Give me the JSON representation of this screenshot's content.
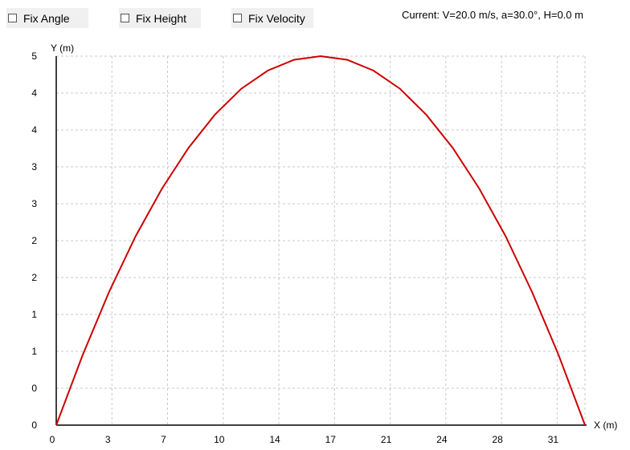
{
  "controls": {
    "fix_angle": {
      "label": "Fix Angle",
      "checked": false
    },
    "fix_height": {
      "label": "Fix Height",
      "checked": false
    },
    "fix_velocity": {
      "label": "Fix Velocity",
      "checked": false
    }
  },
  "status_text": "Current: V=20.0 m/s, a=30.0°, H=0.0 m",
  "chart_data": {
    "type": "line",
    "title": "",
    "xlabel": "X (m)",
    "ylabel": "Y (m)",
    "x_ticks": [
      "0",
      "3",
      "7",
      "10",
      "14",
      "17",
      "21",
      "24",
      "28",
      "31"
    ],
    "y_ticks": [
      "0",
      "0",
      "1",
      "1",
      "2",
      "2",
      "3",
      "3",
      "4",
      "4",
      "5"
    ],
    "xlim": [
      0,
      35.35
    ],
    "ylim": [
      0,
      5.1
    ],
    "grid": true,
    "series": [
      {
        "color": "#cc0000",
        "x": [
          0,
          1.77,
          3.53,
          5.3,
          7.07,
          8.84,
          10.6,
          12.37,
          14.14,
          15.91,
          17.67,
          19.44,
          21.21,
          22.98,
          24.74,
          26.51,
          28.28,
          30.05,
          31.81,
          33.58,
          35.35
        ],
        "y": [
          0,
          0.97,
          1.84,
          2.61,
          3.27,
          3.83,
          4.29,
          4.65,
          4.9,
          5.05,
          5.1,
          5.05,
          4.9,
          4.65,
          4.29,
          3.83,
          3.27,
          2.61,
          1.84,
          0.97,
          0
        ]
      }
    ]
  }
}
